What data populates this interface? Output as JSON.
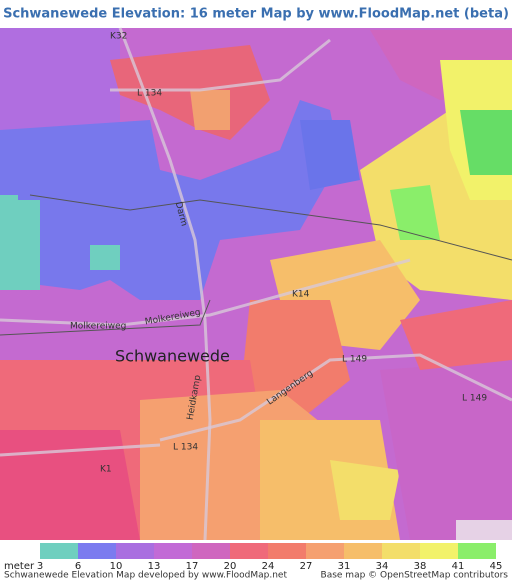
{
  "header": {
    "title": "Schwanewede Elevation: 16 meter Map by www.FloodMap.net (beta)"
  },
  "map": {
    "labels": [
      "K32",
      "L 134",
      "Darm",
      "K14",
      "Molkereiweg",
      "Molkereiweg",
      "Schwanewede",
      "L 149",
      "L 149",
      "Heidkamp",
      "Langenberg",
      "L 134",
      "K1"
    ]
  },
  "legend": {
    "unit": "meter",
    "ticks": [
      3,
      6,
      10,
      13,
      17,
      20,
      24,
      27,
      31,
      34,
      38,
      41,
      45
    ],
    "colors": [
      "#6fcfbf",
      "#7b7bef",
      "#a96ee0",
      "#c26ad6",
      "#cf66bf",
      "#ef6a7a",
      "#f27c6c",
      "#f5a070",
      "#f6be6a",
      "#f3de6a",
      "#f2f26a",
      "#8aee6a"
    ]
  },
  "footer": {
    "left": "Schwanewede Elevation Map developed by www.FloodMap.net",
    "right": "Base map © OpenStreetMap contributors"
  }
}
